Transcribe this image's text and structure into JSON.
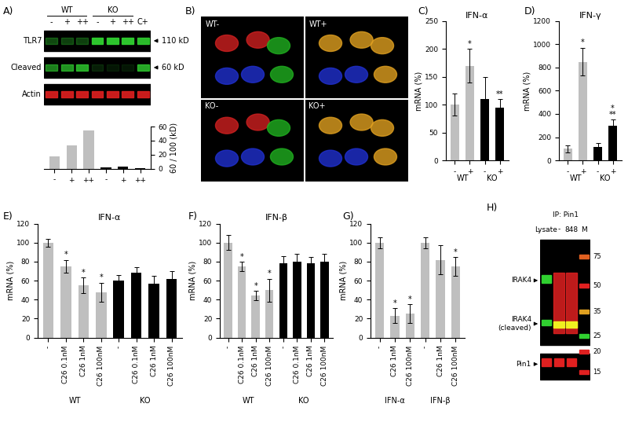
{
  "blot_A": {
    "panel": "A)",
    "groups": [
      "WT",
      "KO"
    ],
    "lanes": [
      "-",
      "+",
      "++",
      "-",
      "+",
      "++",
      "C+"
    ],
    "rows": [
      "TLR7",
      "Cleaved",
      "Actin"
    ],
    "size_markers": [
      "110 kD",
      "60 kD"
    ]
  },
  "micrograph_B": {
    "panel": "B)",
    "labels": [
      "WT-",
      "WT+",
      "KO-",
      "KO+"
    ]
  },
  "blot_H": {
    "panel": "H)",
    "lanes": [
      "Lysate",
      "-",
      "848",
      "M"
    ],
    "ip_label": "IP: Pin1",
    "bands": [
      "IRAK4",
      "IRAK4\n(cleaved)",
      "Pin1"
    ],
    "markers": [
      75,
      50,
      35,
      25,
      20,
      15
    ]
  },
  "chart_data": [
    {
      "type": "bar",
      "categories": [
        "-",
        "+",
        "++",
        "-",
        "+",
        "++"
      ],
      "values": [
        18,
        33,
        55,
        2,
        3,
        1
      ],
      "colors": [
        "#bfbfbf",
        "#bfbfbf",
        "#bfbfbf",
        "#000000",
        "#000000",
        "#000000"
      ],
      "ylim": [
        0,
        60
      ],
      "yticks": [
        0,
        20,
        40,
        60
      ],
      "y_label": "60 / 100 (kD)"
    },
    {
      "type": "bar",
      "panel": "C)",
      "title": "IFN-α",
      "y_label": "mRNA (%)",
      "categories": [
        "-",
        "+",
        "-",
        "+"
      ],
      "groups": [
        "WT",
        "KO"
      ],
      "values": [
        100,
        170,
        110,
        95
      ],
      "errors": [
        20,
        30,
        40,
        15
      ],
      "annotations": [
        null,
        "*",
        null,
        "**"
      ],
      "colors": [
        "#bfbfbf",
        "#bfbfbf",
        "#000000",
        "#000000"
      ],
      "ylim": [
        0,
        250
      ],
      "yticks": [
        0,
        50,
        100,
        150,
        200,
        250
      ]
    },
    {
      "type": "bar",
      "panel": "D)",
      "title": "IFN-γ",
      "y_label": "mRNA (%)",
      "categories": [
        "-",
        "+",
        "-",
        "+"
      ],
      "groups": [
        "WT",
        "KO"
      ],
      "values": [
        100,
        850,
        115,
        300
      ],
      "errors": [
        30,
        120,
        35,
        50
      ],
      "annotations": [
        null,
        "*",
        null,
        "*\n**"
      ],
      "colors": [
        "#bfbfbf",
        "#bfbfbf",
        "#000000",
        "#000000"
      ],
      "ylim": [
        0,
        1200
      ],
      "yticks": [
        0,
        200,
        400,
        600,
        800,
        1000,
        1200
      ]
    },
    {
      "type": "bar",
      "panel": "E)",
      "title": "IFN-α",
      "y_label": "mRNA (%)",
      "categories": [
        "-",
        "C26 0.1nM",
        "C26 1nM",
        "C26 100nM",
        "-",
        "C26 0.1nM",
        "C26 1nM",
        "C26 100nM"
      ],
      "groups": [
        "WT",
        "KO"
      ],
      "values": [
        100,
        75,
        55,
        48,
        60,
        68,
        57,
        62
      ],
      "errors": [
        4,
        7,
        8,
        10,
        6,
        6,
        8,
        8
      ],
      "annotations": [
        null,
        "*",
        "*",
        "*",
        null,
        null,
        null,
        null
      ],
      "colors": [
        "#bfbfbf",
        "#bfbfbf",
        "#bfbfbf",
        "#bfbfbf",
        "#000000",
        "#000000",
        "#000000",
        "#000000"
      ],
      "ylim": [
        0,
        120
      ],
      "yticks": [
        0,
        20,
        40,
        60,
        80,
        100,
        120
      ]
    },
    {
      "type": "bar",
      "panel": "F)",
      "title": "IFN-β",
      "y_label": "mRNA (%)",
      "categories": [
        "-",
        "C26 0.1nM",
        "C26 1nM",
        "C26 100nM",
        "-",
        "C26 0.1nM",
        "C26 1nM",
        "C26 100nM"
      ],
      "groups": [
        "WT",
        "KO"
      ],
      "values": [
        100,
        75,
        44,
        50,
        78,
        80,
        78,
        80
      ],
      "errors": [
        8,
        5,
        5,
        12,
        8,
        8,
        7,
        8
      ],
      "annotations": [
        null,
        "*",
        "*",
        "*",
        null,
        null,
        null,
        null
      ],
      "colors": [
        "#bfbfbf",
        "#bfbfbf",
        "#bfbfbf",
        "#bfbfbf",
        "#000000",
        "#000000",
        "#000000",
        "#000000"
      ],
      "ylim": [
        0,
        120
      ],
      "yticks": [
        0,
        20,
        40,
        60,
        80,
        100,
        120
      ]
    },
    {
      "type": "bar",
      "panel": "G)",
      "y_label": "mRNA (%)",
      "categories": [
        "-",
        "C26 1nM",
        "C26 100nM",
        "-",
        "C26 1nM",
        "C26 100nM"
      ],
      "groups": [
        "IFN-α",
        "IFN-β"
      ],
      "values": [
        100,
        23,
        25,
        100,
        82,
        75
      ],
      "errors": [
        6,
        8,
        10,
        6,
        15,
        10
      ],
      "annotations": [
        null,
        "*",
        "*",
        null,
        null,
        "*"
      ],
      "colors": [
        "#bfbfbf",
        "#bfbfbf",
        "#bfbfbf",
        "#bfbfbf",
        "#bfbfbf",
        "#bfbfbf"
      ],
      "ylim": [
        0,
        120
      ],
      "yticks": [
        0,
        20,
        40,
        60,
        80,
        100,
        120
      ]
    }
  ]
}
